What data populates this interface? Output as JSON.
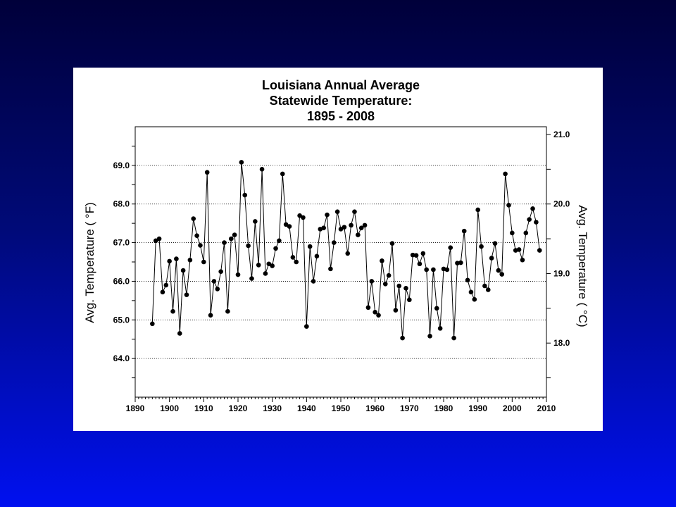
{
  "chart_data": {
    "type": "line",
    "title_lines": [
      "Louisiana Annual Average",
      "Statewide Temperature:",
      "1895 - 2008"
    ],
    "ylabel": "Avg. Temperature ( °F)",
    "ylabel_right": "Avg. Temperature ( °C)",
    "xlim": [
      1890,
      2010
    ],
    "ylim": [
      63.0,
      70.0
    ],
    "grid": "horizontal",
    "x_ticks": [
      1890,
      1900,
      1910,
      1920,
      1930,
      1940,
      1950,
      1960,
      1970,
      1980,
      1990,
      2000,
      2010
    ],
    "y_tick_labels": [
      "64.0",
      "65.0",
      "66.0",
      "67.0",
      "68.0",
      "69.0"
    ],
    "y2_tick_labels": [
      "18.0",
      "19.0",
      "20.0",
      "21.0"
    ],
    "series": [
      {
        "x": [
          1895,
          1896,
          1897,
          1898,
          1899,
          1900,
          1901,
          1902,
          1903,
          1904,
          1905,
          1906,
          1907,
          1908,
          1909,
          1910,
          1911,
          1912,
          1913,
          1914,
          1915,
          1916,
          1917,
          1918,
          1919,
          1920,
          1921,
          1922,
          1923,
          1924,
          1925,
          1926,
          1927,
          1928,
          1929,
          1930,
          1931,
          1932,
          1933,
          1934,
          1935,
          1936,
          1937,
          1938,
          1939,
          1940,
          1941,
          1942,
          1943,
          1944,
          1945,
          1946,
          1947,
          1948,
          1949,
          1950,
          1951,
          1952,
          1953,
          1954,
          1955,
          1956,
          1957,
          1958,
          1959,
          1960,
          1961,
          1962,
          1963,
          1964,
          1965,
          1966,
          1967,
          1968,
          1969,
          1970,
          1971,
          1972,
          1973,
          1974,
          1975,
          1976,
          1977,
          1978,
          1979,
          1980,
          1981,
          1982,
          1983,
          1984,
          1985,
          1986,
          1987,
          1988,
          1989,
          1990,
          1991,
          1992,
          1993,
          1994,
          1995,
          1996,
          1997,
          1998,
          1999,
          2000,
          2001,
          2002,
          2003,
          2004,
          2005,
          2006,
          2007,
          2008
        ],
        "y": [
          64.9,
          67.05,
          67.1,
          65.72,
          65.9,
          66.52,
          65.22,
          66.58,
          64.65,
          66.28,
          65.65,
          66.55,
          67.62,
          67.18,
          66.93,
          66.5,
          68.82,
          65.12,
          66.0,
          65.8,
          66.25,
          67.0,
          65.22,
          67.1,
          67.2,
          66.17,
          69.08,
          68.23,
          66.92,
          66.07,
          67.55,
          66.42,
          68.9,
          66.2,
          66.45,
          66.4,
          66.85,
          67.05,
          68.78,
          67.47,
          67.42,
          66.62,
          66.5,
          67.7,
          67.65,
          64.83,
          66.9,
          66.0,
          66.65,
          67.35,
          67.38,
          67.72,
          66.32,
          67.0,
          67.8,
          67.35,
          67.4,
          66.72,
          67.45,
          67.8,
          67.2,
          67.38,
          67.45,
          65.32,
          66.0,
          65.2,
          65.12,
          66.53,
          65.93,
          66.15,
          66.98,
          65.25,
          65.88,
          64.53,
          65.82,
          65.52,
          66.68,
          66.67,
          66.45,
          66.72,
          66.3,
          64.58,
          66.3,
          65.3,
          64.78,
          66.32,
          66.3,
          66.87,
          64.53,
          66.47,
          66.48,
          67.3,
          66.03,
          65.72,
          65.53,
          67.85,
          66.9,
          65.88,
          65.78,
          66.6,
          66.98,
          66.28,
          66.18,
          68.78,
          67.97,
          67.25,
          66.8,
          66.82,
          66.55,
          67.25,
          67.6,
          67.88,
          67.53,
          66.8
        ]
      }
    ]
  }
}
